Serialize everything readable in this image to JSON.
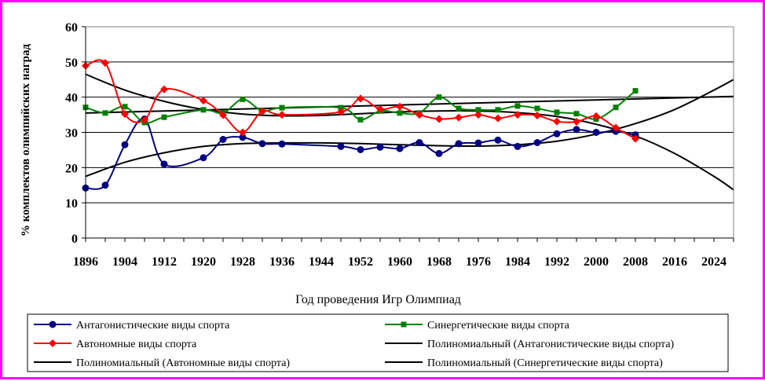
{
  "chart_data": {
    "type": "line",
    "xlabel": "Год проведения Игр Олимпиад",
    "ylabel": "% комплектов олимпийских наград",
    "ylim": [
      0,
      60
    ],
    "yticks": [
      0,
      10,
      20,
      30,
      40,
      50,
      60
    ],
    "xlim": [
      1896,
      2028
    ],
    "xticks": [
      1896,
      1904,
      1912,
      1920,
      1928,
      1936,
      1944,
      1952,
      1960,
      1968,
      1976,
      1984,
      1992,
      2000,
      2008,
      2016,
      2024
    ],
    "grid": "horizontal",
    "legend_position": "bottom",
    "x": [
      1896,
      1900,
      1904,
      1908,
      1912,
      1920,
      1924,
      1928,
      1932,
      1936,
      1948,
      1952,
      1956,
      1960,
      1964,
      1968,
      1972,
      1976,
      1980,
      1984,
      1988,
      1992,
      1996,
      2000,
      2004,
      2008
    ],
    "series": [
      {
        "name": "Антагонистические виды спорта",
        "color": "#000080",
        "marker": "circle",
        "values": [
          14.2,
          15,
          26.5,
          33.8,
          21,
          22.8,
          28,
          28.6,
          26.8,
          26.7,
          26,
          25.1,
          25.8,
          25.4,
          27.1,
          24,
          26.8,
          27,
          27.8,
          26,
          27.1,
          29.6,
          30.8,
          30,
          30.3,
          29.3
        ]
      },
      {
        "name": "Синергетические виды спорта",
        "color": "#008000",
        "marker": "square",
        "values": [
          37.1,
          35.5,
          37.3,
          32.8,
          34.3,
          36.4,
          35.5,
          39.4,
          36.1,
          37,
          37,
          33.6,
          36.1,
          35.5,
          35.5,
          40,
          36.8,
          36.4,
          36.4,
          37.5,
          36.8,
          35.7,
          35.3,
          33.8,
          37.1,
          41.8
        ]
      },
      {
        "name": "Автономные виды спорта",
        "color": "#ff0000",
        "marker": "diamond",
        "values": [
          48.9,
          49.7,
          35.2,
          33.5,
          42.2,
          39,
          34.9,
          30,
          36,
          35,
          35.8,
          39.6,
          36.6,
          37.3,
          35,
          33.8,
          34.2,
          35,
          34,
          35,
          34.8,
          33.1,
          33,
          34.6,
          31.3,
          28.2
        ]
      }
    ],
    "trendlines": [
      {
        "name": "Полиномиальный (Антагонистические виды спорта)",
        "color": "#000000",
        "x": [
          1896,
          1904,
          1912,
          1920,
          1928,
          1936,
          1944,
          1952,
          1960,
          1968,
          1976,
          1984,
          1992,
          2000,
          2008,
          2016,
          2024,
          2028
        ],
        "values": [
          17.5,
          21.5,
          24.2,
          26,
          26.8,
          27,
          27,
          26.8,
          26.5,
          26.2,
          26.1,
          26.5,
          27.5,
          29.5,
          32.5,
          36.5,
          42,
          45
        ]
      },
      {
        "name": "Полиномиальный (Автономные виды спорта)",
        "color": "#000000",
        "x": [
          1896,
          1904,
          1912,
          1920,
          1928,
          1936,
          1944,
          1952,
          1960,
          1968,
          1976,
          1984,
          1992,
          2000,
          2008,
          2016,
          2024,
          2028
        ],
        "values": [
          46.5,
          42,
          38.8,
          36.5,
          35.2,
          34.7,
          34.8,
          35.3,
          35.8,
          36.1,
          36.1,
          35.6,
          34.5,
          32.3,
          29,
          24,
          17.5,
          13.7
        ]
      },
      {
        "name": "Полиномиальный (Синергетические виды спорта)",
        "color": "#000000",
        "x": [
          1896,
          2028
        ],
        "values": [
          35.5,
          40.2
        ]
      }
    ],
    "legend": [
      {
        "label": "Антагонистические виды спорта",
        "color": "#000080",
        "marker": "circle"
      },
      {
        "label": "Синергетические виды спорта",
        "color": "#008000",
        "marker": "square"
      },
      {
        "label": "Автономные виды спорта",
        "color": "#ff0000",
        "marker": "diamond"
      },
      {
        "label": "Полиномиальный (Антагонистические виды спорта)",
        "color": "#000000",
        "marker": "none"
      },
      {
        "label": "Полиномиальный (Автономные виды спорта)",
        "color": "#000000",
        "marker": "none"
      },
      {
        "label": "Полиномиальный (Синергетические виды спорта)",
        "color": "#000000",
        "marker": "none"
      }
    ]
  }
}
